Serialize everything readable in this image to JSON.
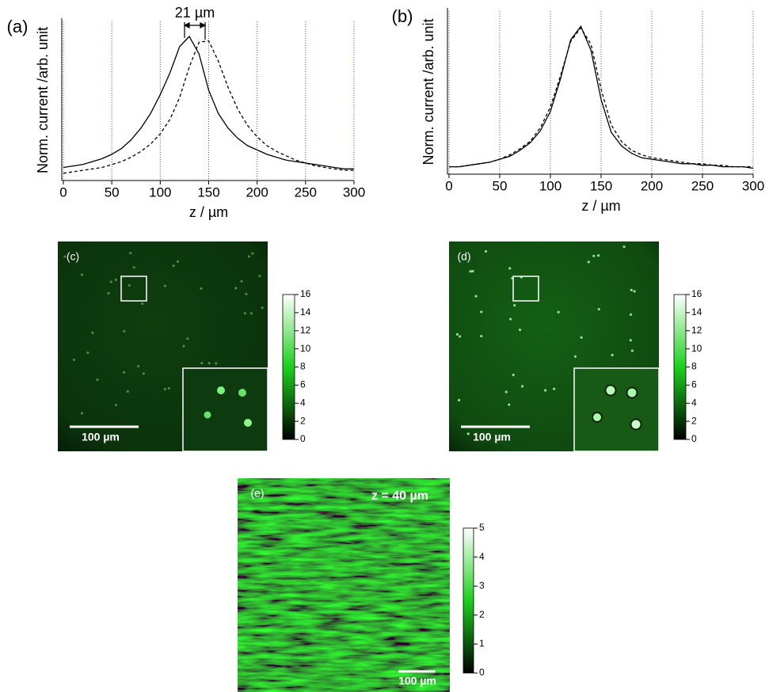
{
  "chart_data": [
    {
      "type": "line",
      "panel_label": "(a)",
      "annotation": "21 µm",
      "x_label": "z / µm",
      "y_label": "Norm. current /arb. unit",
      "x": [
        0,
        10,
        20,
        30,
        40,
        50,
        60,
        70,
        80,
        90,
        100,
        110,
        120,
        130,
        140,
        150,
        160,
        170,
        180,
        190,
        200,
        210,
        220,
        230,
        240,
        250,
        260,
        270,
        280,
        290,
        300
      ],
      "series": [
        {
          "color": "#000000",
          "dashed": false,
          "values": [
            0.09,
            0.1,
            0.11,
            0.13,
            0.15,
            0.18,
            0.22,
            0.28,
            0.36,
            0.46,
            0.59,
            0.74,
            0.92,
            0.99,
            0.87,
            0.62,
            0.46,
            0.36,
            0.29,
            0.24,
            0.21,
            0.18,
            0.16,
            0.14,
            0.13,
            0.12,
            0.11,
            0.1,
            0.09,
            0.08,
            0.08
          ]
        },
        {
          "color": "#000000",
          "dashed": true,
          "values": [
            0.05,
            0.06,
            0.07,
            0.08,
            0.09,
            0.11,
            0.13,
            0.16,
            0.2,
            0.25,
            0.32,
            0.42,
            0.57,
            0.78,
            0.95,
            0.96,
            0.82,
            0.64,
            0.49,
            0.38,
            0.3,
            0.24,
            0.2,
            0.17,
            0.14,
            0.12,
            0.1,
            0.09,
            0.08,
            0.07,
            0.07
          ]
        }
      ],
      "xlim": [
        0,
        300
      ],
      "xticks": [
        0,
        50,
        100,
        150,
        200,
        250,
        300
      ],
      "ylim": [
        0,
        1.05
      ],
      "grid_color": "#4b4bd8"
    },
    {
      "type": "line",
      "panel_label": "(b)",
      "x_label": "z / µm",
      "y_label": "Norm. current /arb. unit",
      "x": [
        0,
        10,
        20,
        30,
        40,
        50,
        60,
        70,
        80,
        90,
        100,
        110,
        120,
        130,
        140,
        150,
        160,
        170,
        180,
        190,
        200,
        210,
        220,
        230,
        240,
        250,
        260,
        270,
        280,
        290,
        300
      ],
      "series": [
        {
          "color": "#000000",
          "dashed": false,
          "values": [
            0.05,
            0.05,
            0.06,
            0.07,
            0.08,
            0.1,
            0.12,
            0.16,
            0.21,
            0.29,
            0.42,
            0.64,
            0.9,
            0.99,
            0.83,
            0.5,
            0.28,
            0.19,
            0.14,
            0.11,
            0.1,
            0.09,
            0.08,
            0.07,
            0.07,
            0.06,
            0.06,
            0.05,
            0.05,
            0.05,
            0.04
          ]
        },
        {
          "color": "#000000",
          "dashed": true,
          "values": [
            0.05,
            0.05,
            0.06,
            0.07,
            0.08,
            0.1,
            0.13,
            0.17,
            0.22,
            0.31,
            0.45,
            0.66,
            0.89,
            0.98,
            0.87,
            0.57,
            0.33,
            0.22,
            0.16,
            0.13,
            0.11,
            0.1,
            0.09,
            0.08,
            0.07,
            0.07,
            0.06,
            0.06,
            0.05,
            0.05,
            0.05
          ]
        }
      ],
      "xlim": [
        0,
        300
      ],
      "xticks": [
        0,
        50,
        100,
        150,
        200,
        250,
        300
      ],
      "ylim": [
        0,
        1.05
      ],
      "grid_color": "#4b4bd8"
    }
  ],
  "images": [
    {
      "panel_label": "(c)",
      "scale_bar": "100 µm",
      "colorbar": {
        "lim": [
          0,
          16
        ],
        "ticks": [
          0,
          2,
          4,
          6,
          8,
          10,
          12,
          14,
          16
        ]
      }
    },
    {
      "panel_label": "(d)",
      "scale_bar": "100 µm",
      "colorbar": {
        "lim": [
          0,
          16
        ],
        "ticks": [
          0,
          2,
          4,
          6,
          8,
          10,
          12,
          14,
          16
        ]
      }
    },
    {
      "panel_label": "(e)",
      "annotation": "z = 40 µm",
      "scale_bar": "100 µm",
      "colorbar": {
        "lim": [
          0,
          5
        ],
        "ticks": [
          0,
          1,
          2,
          3,
          4,
          5
        ]
      }
    }
  ]
}
